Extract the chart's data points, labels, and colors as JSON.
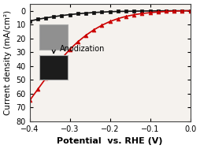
{
  "title": "",
  "xlabel": "Potential  vs. RHE (V)",
  "ylabel": "Current density (mA/cm²)",
  "xlim": [
    -0.4,
    0.0
  ],
  "ylim": [
    80,
    -5
  ],
  "xticks": [
    -0.4,
    -0.3,
    -0.2,
    -0.1,
    0.0
  ],
  "yticks": [
    0,
    10,
    20,
    30,
    40,
    50,
    60,
    70,
    80
  ],
  "black_x": [
    -0.4,
    -0.38,
    -0.36,
    -0.34,
    -0.32,
    -0.3,
    -0.28,
    -0.26,
    -0.24,
    -0.22,
    -0.2,
    -0.18,
    -0.16,
    -0.14,
    -0.12,
    -0.1,
    -0.08,
    -0.06,
    -0.04,
    -0.02,
    0.0
  ],
  "black_y": [
    7.5,
    6.2,
    5.2,
    4.3,
    3.5,
    2.8,
    2.2,
    1.7,
    1.3,
    1.0,
    0.7,
    0.5,
    0.4,
    0.3,
    0.2,
    0.15,
    0.1,
    0.05,
    0.02,
    0.01,
    0.0
  ],
  "red_x": [
    -0.4,
    -0.38,
    -0.36,
    -0.34,
    -0.32,
    -0.3,
    -0.28,
    -0.26,
    -0.24,
    -0.22,
    -0.2,
    -0.18,
    -0.16,
    -0.14,
    -0.12,
    -0.1,
    -0.08,
    -0.06,
    -0.04,
    -0.02,
    0.0
  ],
  "red_y": [
    65.0,
    57.0,
    49.0,
    41.5,
    34.5,
    28.0,
    22.5,
    17.8,
    13.8,
    10.5,
    7.8,
    5.7,
    4.1,
    2.9,
    2.0,
    1.4,
    0.9,
    0.5,
    0.25,
    0.08,
    0.0
  ],
  "black_color": "#111111",
  "red_color": "#cc0000",
  "bg_color": "#ffffff",
  "plot_bg_color": "#f5f2ee",
  "annotation_text": "Anodization",
  "xlabel_fontsize": 8,
  "ylabel_fontsize": 7.5,
  "tick_fontsize": 7,
  "annotation_fontsize": 7,
  "img1_color": "#909090",
  "img2_color": "#1c1c1c",
  "img_border_color": "#aaaaaa"
}
